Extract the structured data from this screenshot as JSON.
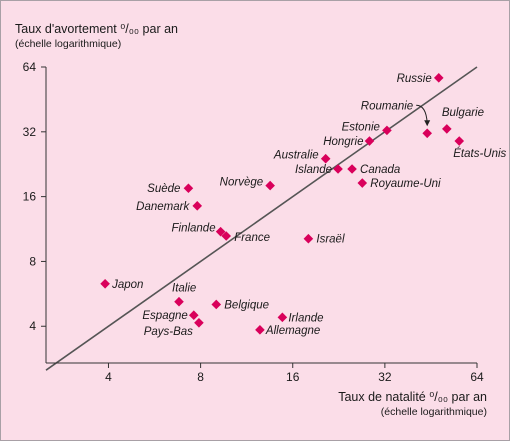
{
  "chart_data": {
    "type": "scatter",
    "title": "",
    "ylabel_main": "Taux d'avortement ⁰/₀₀ par an",
    "ylabel_sub": "(échelle logarithmique)",
    "xlabel_main": "Taux de natalité ⁰/₀₀ par an",
    "xlabel_sub": "(échelle logarithmique)",
    "xscale": "log2",
    "yscale": "log2",
    "xlim": [
      2.5,
      64
    ],
    "ylim": [
      2.7,
      64
    ],
    "xticks": [
      4,
      8,
      16,
      32,
      64
    ],
    "yticks": [
      4,
      8,
      16,
      32,
      64
    ],
    "reference_line": "y = x",
    "point_color": "#d9005b",
    "background": "#fbdde8",
    "points": [
      {
        "label": "Russie",
        "x": 48,
        "y": 57
      },
      {
        "label": "Roumanie",
        "x": 44,
        "y": 31.5
      },
      {
        "label": "Bulgarie",
        "x": 51,
        "y": 33
      },
      {
        "label": "États-Unis",
        "x": 56,
        "y": 29
      },
      {
        "label": "Estonie",
        "x": 32.5,
        "y": 32.5
      },
      {
        "label": "Hongrie",
        "x": 28.5,
        "y": 29
      },
      {
        "label": "Australie",
        "x": 20.5,
        "y": 24
      },
      {
        "label": "Islande",
        "x": 22.5,
        "y": 21.5
      },
      {
        "label": "Canada",
        "x": 25,
        "y": 21.5
      },
      {
        "label": "Royaume-Uni",
        "x": 27,
        "y": 18.5
      },
      {
        "label": "Norvège",
        "x": 13.5,
        "y": 18
      },
      {
        "label": "Suède",
        "x": 7.3,
        "y": 17.5
      },
      {
        "label": "Danemark",
        "x": 7.8,
        "y": 14.5
      },
      {
        "label": "Finlande",
        "x": 9.3,
        "y": 11
      },
      {
        "label": "France",
        "x": 9.7,
        "y": 10.5
      },
      {
        "label": "Israël",
        "x": 18,
        "y": 10.2
      },
      {
        "label": "Japon",
        "x": 3.9,
        "y": 6.3
      },
      {
        "label": "Italie",
        "x": 6.8,
        "y": 5.2
      },
      {
        "label": "Belgique",
        "x": 9.0,
        "y": 5.05
      },
      {
        "label": "Espagne",
        "x": 7.6,
        "y": 4.5
      },
      {
        "label": "Pays-Bas",
        "x": 7.9,
        "y": 4.15
      },
      {
        "label": "Irlande",
        "x": 14.8,
        "y": 4.4
      },
      {
        "label": "Allemagne",
        "x": 12.5,
        "y": 3.85
      }
    ]
  }
}
